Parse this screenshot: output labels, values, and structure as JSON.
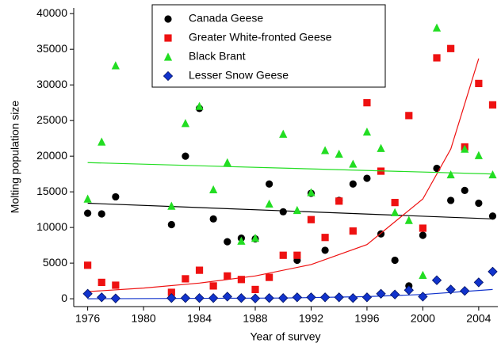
{
  "chart_data": {
    "type": "scatter",
    "x_label": "Year of survey",
    "y_label": "Molting population size",
    "xlim": [
      1975,
      2005.37
    ],
    "ylim": [
      -1100,
      40800
    ],
    "xticks": [
      1976,
      1980,
      1984,
      1988,
      1992,
      1996,
      2000,
      2004
    ],
    "yticks": [
      0,
      5000,
      10000,
      15000,
      20000,
      25000,
      30000,
      35000,
      40000
    ],
    "x": [
      1976,
      1977,
      1978,
      1982,
      1983,
      1984,
      1985,
      1986,
      1987,
      1988,
      1989,
      1990,
      1991,
      1992,
      1993,
      1994,
      1995,
      1996,
      1997,
      1998,
      1999,
      2000,
      2001,
      2002,
      2003,
      2004,
      2005
    ],
    "legend": "upper center",
    "series": [
      {
        "name": "Canada Geese",
        "color": "#000000",
        "marker": "circle",
        "values": [
          12000,
          11900,
          14300,
          10400,
          20000,
          26700,
          11200,
          8000,
          8500,
          8400,
          16100,
          12200,
          5400,
          14800,
          6800,
          13800,
          16100,
          16900,
          9100,
          5400,
          1800,
          8900,
          18300,
          13800,
          15200,
          13400,
          11600
        ],
        "trend_x": [
          1976,
          2005
        ],
        "trend_values": [
          13400,
          11200
        ]
      },
      {
        "name": "Greater White-fronted Geese",
        "color": "#ee1111",
        "marker": "square",
        "values": [
          4700,
          2300,
          1900,
          900,
          2800,
          4000,
          1800,
          3200,
          2700,
          1300,
          3000,
          6100,
          6100,
          11100,
          8600,
          13700,
          9500,
          27500,
          17900,
          13500,
          25700,
          9900,
          33800,
          35100,
          21300,
          30200,
          27200
        ],
        "trend_x": [
          1976,
          1980,
          1984,
          1988,
          1992,
          1996,
          2000,
          2002,
          2004
        ],
        "trend_values": [
          1000,
          1500,
          2200,
          3200,
          4800,
          7600,
          14000,
          21000,
          33700
        ]
      },
      {
        "name": "Black Brant",
        "color": "#22dd22",
        "marker": "triangle",
        "values": [
          14000,
          22000,
          32700,
          13000,
          24600,
          27000,
          15300,
          19100,
          8100,
          8500,
          13300,
          23100,
          12400,
          14900,
          20800,
          20300,
          18900,
          23400,
          21100,
          12100,
          11000,
          3300,
          38000,
          17400,
          21000,
          20100,
          17400
        ],
        "trend_x": [
          1976,
          2005
        ],
        "trend_values": [
          19100,
          17500
        ]
      },
      {
        "name": "Lesser Snow Geese",
        "color": "#1133cc",
        "marker": "diamond",
        "values": [
          700,
          200,
          50,
          100,
          100,
          100,
          100,
          300,
          100,
          50,
          100,
          100,
          200,
          200,
          200,
          200,
          100,
          200,
          700,
          600,
          1200,
          300,
          2600,
          1300,
          1100,
          2300,
          3800
        ],
        "trend_x": [
          1976,
          1990,
          1996,
          2000,
          2005
        ],
        "trend_values": [
          0,
          100,
          300,
          600,
          1300
        ]
      }
    ]
  }
}
